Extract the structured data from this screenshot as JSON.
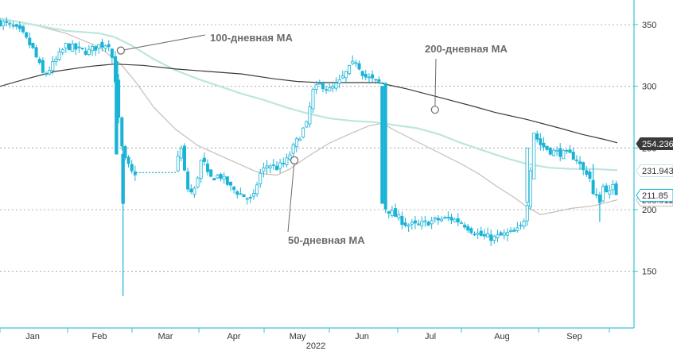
{
  "chart_data": {
    "type": "candlestick",
    "year_label": "2022",
    "y_axis": {
      "ticks": [
        150,
        200,
        250,
        300,
        350
      ],
      "ylim": [
        110,
        370
      ],
      "position": "right",
      "grid": true,
      "grid_style": "dashed"
    },
    "x_axis": {
      "month_labels": [
        "Jan",
        "Feb",
        "Mar",
        "Apr",
        "May",
        "Jun",
        "Jul",
        "Aug",
        "Sep"
      ]
    },
    "price": {
      "color": "#1ab3d6",
      "last_value": "211.85",
      "close_path": [
        [
          0,
          352
        ],
        [
          5,
          349
        ],
        [
          10,
          343
        ],
        [
          15,
          330
        ],
        [
          20,
          308
        ],
        [
          25,
          320
        ],
        [
          30,
          333
        ],
        [
          35,
          330
        ],
        [
          40,
          328
        ],
        [
          45,
          333
        ],
        [
          50,
          335
        ],
        [
          53,
          300
        ],
        [
          55,
          245
        ],
        [
          56,
          255
        ],
        [
          57,
          240
        ],
        [
          60,
          230
        ],
        [
          62,
          230
        ],
        [
          80,
          230
        ],
        [
          82,
          255
        ],
        [
          85,
          218
        ],
        [
          88,
          212
        ],
        [
          92,
          243
        ],
        [
          95,
          225
        ],
        [
          100,
          228
        ],
        [
          105,
          218
        ],
        [
          110,
          212
        ],
        [
          115,
          207
        ],
        [
          118,
          228
        ],
        [
          122,
          237
        ],
        [
          126,
          234
        ],
        [
          130,
          238
        ],
        [
          134,
          252
        ],
        [
          138,
          265
        ],
        [
          140,
          270
        ],
        [
          142,
          295
        ],
        [
          146,
          302
        ],
        [
          150,
          297
        ],
        [
          154,
          302
        ],
        [
          158,
          312
        ],
        [
          162,
          321
        ],
        [
          166,
          308
        ],
        [
          172,
          303
        ],
        [
          174,
          303
        ],
        [
          175,
          202
        ],
        [
          180,
          195
        ],
        [
          185,
          188
        ],
        [
          190,
          187
        ],
        [
          195,
          190
        ],
        [
          200,
          192
        ],
        [
          205,
          193
        ],
        [
          210,
          190
        ],
        [
          215,
          183
        ],
        [
          220,
          178
        ],
        [
          225,
          177
        ],
        [
          230,
          180
        ],
        [
          235,
          182
        ],
        [
          238,
          188
        ],
        [
          240,
          206
        ],
        [
          243,
          262
        ],
        [
          246,
          253
        ],
        [
          250,
          248
        ],
        [
          255,
          246
        ],
        [
          260,
          244
        ],
        [
          263,
          241
        ],
        [
          265,
          232
        ],
        [
          268,
          230
        ],
        [
          270,
          212
        ],
        [
          273,
          208
        ],
        [
          275,
          222
        ],
        [
          277,
          212
        ],
        [
          279,
          218
        ],
        [
          281,
          211.85
        ]
      ],
      "low_spikes": [
        [
          56,
          130
        ],
        [
          273,
          190
        ]
      ],
      "high_spikes": [
        [
          53,
          285
        ],
        [
          270,
          237
        ]
      ]
    },
    "series": [
      {
        "name": "50-дневная MA",
        "color": "#c9beb6",
        "values": [
          [
            15,
            350
          ],
          [
            30,
            343
          ],
          [
            45,
            332
          ],
          [
            55,
            318
          ],
          [
            62,
            303
          ],
          [
            70,
            283
          ],
          [
            80,
            265
          ],
          [
            90,
            252
          ],
          [
            100,
            244
          ],
          [
            110,
            236
          ],
          [
            115,
            232
          ],
          [
            120,
            229
          ],
          [
            126,
            228
          ],
          [
            132,
            233
          ],
          [
            140,
            243
          ],
          [
            150,
            254
          ],
          [
            160,
            262
          ],
          [
            168,
            268
          ],
          [
            174,
            270
          ],
          [
            180,
            264
          ],
          [
            190,
            255
          ],
          [
            200,
            246
          ],
          [
            210,
            237
          ],
          [
            218,
            229
          ],
          [
            226,
            219
          ],
          [
            234,
            210
          ],
          [
            240,
            202
          ],
          [
            246,
            196
          ],
          [
            252,
            198
          ],
          [
            260,
            201
          ],
          [
            270,
            203
          ],
          [
            281,
            208
          ]
        ]
      },
      {
        "name": "100-дневная MA",
        "color": "#bde6dd",
        "values": [
          [
            0,
            355
          ],
          [
            15,
            350
          ],
          [
            30,
            345
          ],
          [
            45,
            343
          ],
          [
            52,
            340
          ],
          [
            60,
            333
          ],
          [
            70,
            322
          ],
          [
            80,
            313
          ],
          [
            90,
            306
          ],
          [
            100,
            300
          ],
          [
            110,
            294
          ],
          [
            120,
            289
          ],
          [
            130,
            283
          ],
          [
            140,
            278
          ],
          [
            150,
            274
          ],
          [
            160,
            272
          ],
          [
            170,
            271
          ],
          [
            174,
            270
          ],
          [
            190,
            266
          ],
          [
            200,
            261
          ],
          [
            210,
            254
          ],
          [
            220,
            248
          ],
          [
            230,
            242
          ],
          [
            240,
            237
          ],
          [
            250,
            234
          ],
          [
            260,
            233
          ],
          [
            270,
            233
          ],
          [
            281,
            231.943
          ]
        ]
      },
      {
        "name": "200-дневная MA",
        "color": "#3a3a3a",
        "values": [
          [
            0,
            300
          ],
          [
            12,
            306
          ],
          [
            25,
            312
          ],
          [
            40,
            316
          ],
          [
            52,
            318
          ],
          [
            65,
            317
          ],
          [
            80,
            314
          ],
          [
            95,
            312
          ],
          [
            110,
            310
          ],
          [
            125,
            306
          ],
          [
            135,
            304
          ],
          [
            145,
            303
          ],
          [
            160,
            303
          ],
          [
            172,
            303
          ],
          [
            185,
            298
          ],
          [
            200,
            291
          ],
          [
            215,
            284
          ],
          [
            225,
            279
          ],
          [
            240,
            273
          ],
          [
            255,
            266
          ],
          [
            265,
            261
          ],
          [
            275,
            257
          ],
          [
            281,
            254.236
          ]
        ]
      }
    ],
    "annotations": [
      {
        "text": "100-дневная MA",
        "points_to": [
          55,
          329
        ]
      },
      {
        "text": "200-дневная MA",
        "points_to": [
          198,
          281
        ]
      },
      {
        "text": "50-дневная MA",
        "points_to": [
          134,
          240
        ]
      }
    ],
    "value_badges": [
      {
        "label": "254.236",
        "series": "200-дневная MA",
        "value": 254.236,
        "bg": "#3a3a3a",
        "fg": "#ffffff"
      },
      {
        "label": "231.943",
        "series": "100-дневная MA",
        "value": 231.943,
        "bg": "#ffffff",
        "fg": "#333333",
        "border": "#bde6dd"
      },
      {
        "label": "211.85",
        "series": "price",
        "value": 211.85,
        "bg": "#ffffff",
        "fg": "#333333",
        "border": "#1ab3d6"
      },
      {
        "label": "208.011",
        "series": "50-дневная MA",
        "value": 208.011,
        "bg": "#ffffff",
        "fg": "#333333",
        "border": "#c9beb6"
      }
    ]
  }
}
